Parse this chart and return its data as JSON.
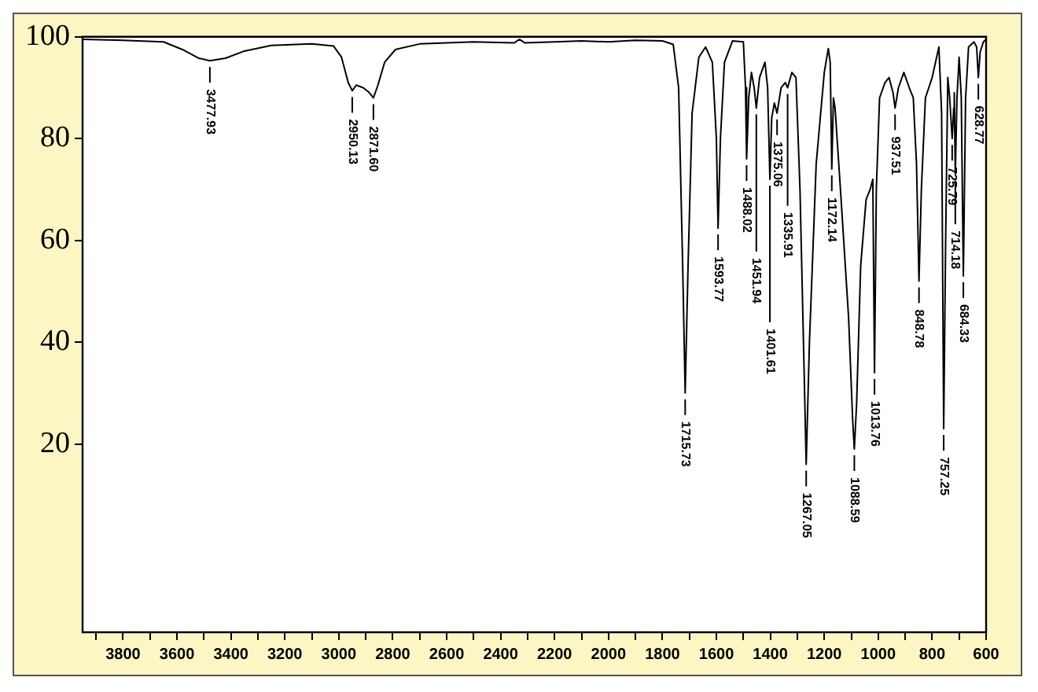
{
  "chart_data": {
    "type": "line",
    "x": [
      3950,
      3800,
      3650,
      3580,
      3520,
      3477.93,
      3420,
      3350,
      3250,
      3100,
      3020,
      2990,
      2965,
      2950.13,
      2935,
      2910,
      2890,
      2871.6,
      2855,
      2830,
      2790,
      2700,
      2500,
      2350,
      2330,
      2310,
      2200,
      2100,
      2000,
      1900,
      1800,
      1760,
      1740,
      1725,
      1715.73,
      1705,
      1690,
      1665,
      1640,
      1615,
      1600,
      1593.77,
      1585,
      1570,
      1540,
      1500,
      1492,
      1488.02,
      1480,
      1470,
      1460,
      1451.94,
      1440,
      1420,
      1410,
      1401.61,
      1395,
      1385,
      1375.06,
      1360,
      1345,
      1335.91,
      1320,
      1305,
      1290,
      1275,
      1267.05,
      1255,
      1230,
      1200,
      1185,
      1178,
      1172.14,
      1166,
      1160,
      1140,
      1110,
      1095,
      1088.59,
      1080,
      1065,
      1045,
      1030,
      1020,
      1013.76,
      1007,
      995,
      975,
      960,
      945,
      937.51,
      925,
      905,
      885,
      870,
      858,
      848.78,
      840,
      825,
      800,
      775,
      765,
      757.25,
      750,
      742,
      735,
      725.79,
      720,
      718,
      714.18,
      708,
      700,
      692,
      684.33,
      676,
      665,
      645,
      635,
      628.77,
      622,
      610,
      600
    ],
    "series": [
      {
        "color": "#000000",
        "values": [
          99.5,
          99.3,
          99,
          97.5,
          95.8,
          95.3,
          95.8,
          97.2,
          98.3,
          98.6,
          98.2,
          96,
          91,
          89.4,
          90.5,
          90,
          89.2,
          88,
          90.5,
          95,
          97.5,
          98.6,
          99,
          98.8,
          99.5,
          98.8,
          99,
          99.2,
          99,
          99.3,
          99.2,
          98.5,
          90,
          55,
          30,
          55,
          85,
          96,
          98,
          95,
          80,
          62.4,
          80,
          95,
          99.2,
          99,
          90,
          76,
          88,
          93,
          90,
          86,
          92,
          95,
          90,
          72,
          84,
          87,
          85,
          90,
          91,
          90,
          93,
          92,
          70,
          35,
          16,
          40,
          75,
          93,
          97.7,
          95,
          74,
          88,
          86,
          70,
          45,
          25,
          19,
          28,
          55,
          68,
          70,
          72,
          34,
          70,
          88,
          91,
          92,
          89,
          86,
          90,
          93,
          90,
          88,
          75,
          52,
          70,
          88,
          92,
          98,
          85,
          23,
          60,
          92,
          88,
          80,
          86,
          89,
          73,
          88,
          96,
          88,
          53,
          88,
          98,
          99,
          98,
          92,
          97,
          99,
          99.5
        ]
      }
    ],
    "xlim": [
      3950,
      600
    ],
    "ylim": [
      -17,
      100
    ],
    "xticks": [
      {
        "value": 3900,
        "label": null
      },
      3800,
      {
        "value": 3700,
        "label": null
      },
      3600,
      {
        "value": 3500,
        "label": null
      },
      3400,
      {
        "value": 3300,
        "label": null
      },
      3200,
      {
        "value": 3100,
        "label": null
      },
      3000,
      {
        "value": 2900,
        "label": null
      },
      2800,
      {
        "value": 2700,
        "label": null
      },
      2600,
      {
        "value": 2500,
        "label": null
      },
      2400,
      {
        "value": 2300,
        "label": null
      },
      2200,
      {
        "value": 2100,
        "label": null
      },
      2000,
      {
        "value": 1900,
        "label": null
      },
      1800,
      {
        "value": 1700,
        "label": null
      },
      1600,
      {
        "value": 1500,
        "label": null
      },
      1400,
      {
        "value": 1300,
        "label": null
      },
      1200,
      {
        "value": 1100,
        "label": null
      },
      1000,
      {
        "value": 900,
        "label": null
      },
      800,
      {
        "value": 700,
        "label": null
      },
      600
    ],
    "yticks": [
      20,
      40,
      60,
      80,
      100
    ],
    "grid": false,
    "legend": false,
    "marker": "none",
    "line_style": "solid",
    "annotations": [
      {
        "text": "3477.93",
        "x": 3477.93,
        "y": 95.3
      },
      {
        "text": "2950.13",
        "x": 2950.13,
        "y": 89.4
      },
      {
        "text": "2871.60",
        "x": 2871.6,
        "y": 88
      },
      {
        "text": "1715.73",
        "x": 1715.73,
        "y": 30
      },
      {
        "text": "1593.77",
        "x": 1593.77,
        "y": 62.4
      },
      {
        "text": "1488.02",
        "x": 1488.02,
        "y": 76
      },
      {
        "text": "1451.94",
        "x": 1451.94,
        "y": 86
      },
      {
        "text": "1401.61",
        "x": 1401.61,
        "y": 72
      },
      {
        "text": "1375.06",
        "x": 1375.06,
        "y": 85
      },
      {
        "text": "1335.91",
        "x": 1335.91,
        "y": 90
      },
      {
        "text": "1267.05",
        "x": 1267.05,
        "y": 16
      },
      {
        "text": "1172.14",
        "x": 1172.14,
        "y": 74
      },
      {
        "text": "1088.59",
        "x": 1088.59,
        "y": 19
      },
      {
        "text": "1013.76",
        "x": 1013.76,
        "y": 34
      },
      {
        "text": "937.51",
        "x": 937.51,
        "y": 86
      },
      {
        "text": "848.78",
        "x": 848.78,
        "y": 52
      },
      {
        "text": "757.25",
        "x": 757.25,
        "y": 23
      },
      {
        "text": "725.79",
        "x": 725.79,
        "y": 80
      },
      {
        "text": "714.18",
        "x": 714.18,
        "y": 73
      },
      {
        "text": "684.33",
        "x": 684.33,
        "y": 53
      },
      {
        "text": "628.77",
        "x": 628.77,
        "y": 92
      }
    ]
  }
}
